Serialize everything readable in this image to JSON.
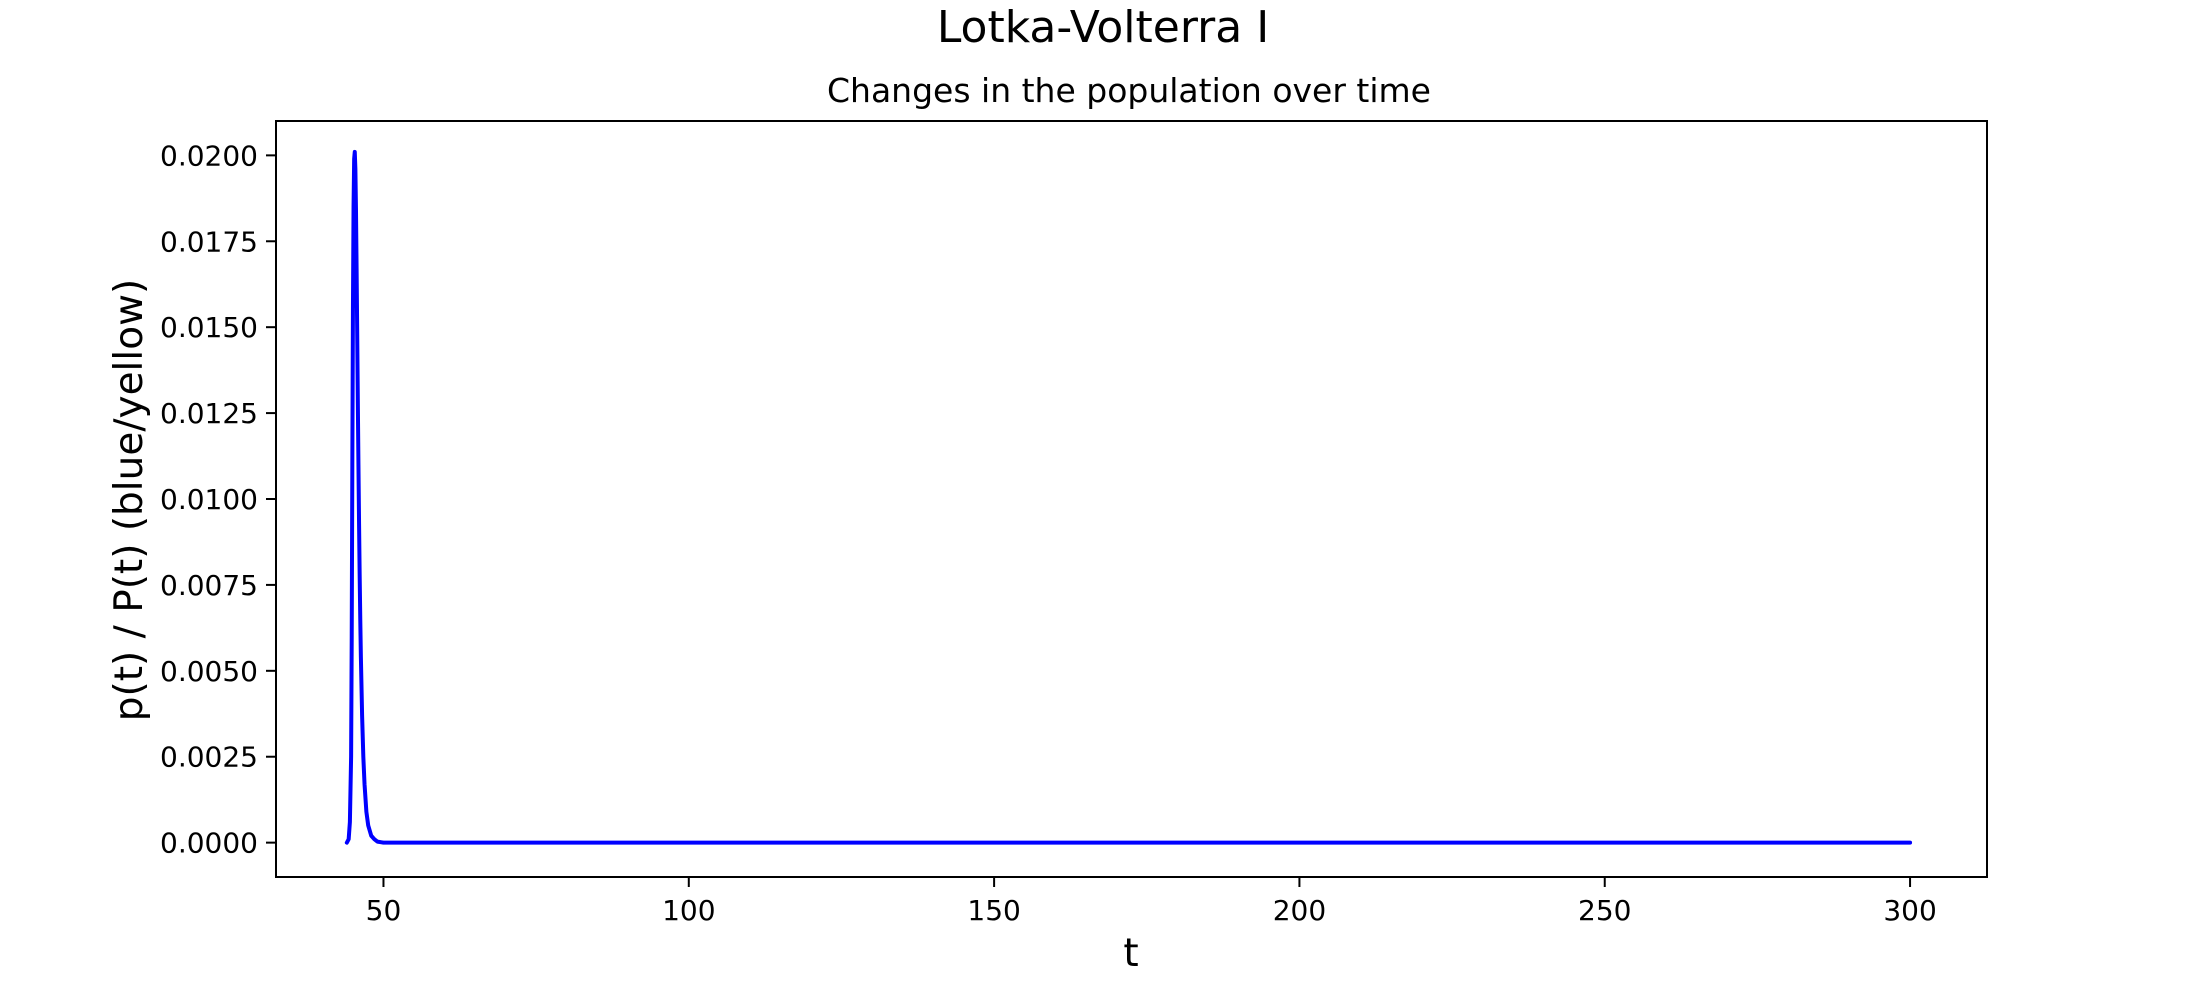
{
  "chart_data": {
    "type": "line",
    "suptitle": "Lotka-Volterra I",
    "title": "Changes in the population over time",
    "xlabel": "t",
    "ylabel": "p(t) / P(t) (blue/yellow)",
    "xlim": [
      32.4,
      312.6
    ],
    "ylim": [
      -0.001,
      0.021
    ],
    "grid": false,
    "xticks": [
      50,
      100,
      150,
      200,
      250,
      300
    ],
    "xtick_labels": [
      "50",
      "100",
      "150",
      "200",
      "250",
      "300"
    ],
    "yticks": [
      0.0,
      0.0025,
      0.005,
      0.0075,
      0.01,
      0.0125,
      0.015,
      0.0175,
      0.02
    ],
    "ytick_labels": [
      "0.0000",
      "0.0025",
      "0.0050",
      "0.0075",
      "0.0100",
      "0.0125",
      "0.0150",
      "0.0175",
      "0.0200"
    ],
    "series": [
      {
        "color": "#0000ff",
        "x": [
          44.0,
          44.3,
          44.5,
          44.7,
          44.8,
          44.9,
          45.0,
          45.1,
          45.2,
          45.3,
          45.4,
          45.5,
          45.6,
          45.7,
          45.8,
          45.9,
          46.0,
          46.1,
          46.2,
          46.3,
          46.5,
          46.7,
          46.9,
          47.2,
          47.5,
          48.0,
          48.5,
          49.0,
          50.0,
          52.0,
          60.0,
          100.0,
          150.0,
          200.0,
          250.0,
          300.0
        ],
        "y": [
          0.0,
          0.0001,
          0.0006,
          0.0025,
          0.006,
          0.011,
          0.0155,
          0.0185,
          0.0199,
          0.0201,
          0.0196,
          0.0184,
          0.0167,
          0.0148,
          0.0128,
          0.011,
          0.0093,
          0.0078,
          0.0065,
          0.0054,
          0.0037,
          0.0025,
          0.0017,
          0.0009,
          0.0005,
          0.0002,
          0.0001,
          3e-05,
          0.0,
          0.0,
          0.0,
          0.0,
          0.0,
          0.0,
          0.0,
          0.0
        ]
      }
    ]
  }
}
